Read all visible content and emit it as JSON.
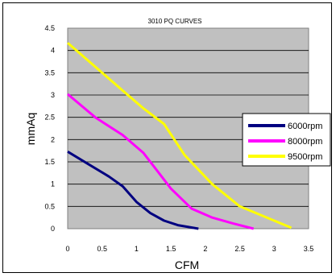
{
  "chart_data": {
    "type": "line",
    "title": "3010 PQ CURVES",
    "xlabel": "CFM",
    "ylabel": "mmAq",
    "xlim": [
      0,
      3.5
    ],
    "ylim": [
      0,
      4.5
    ],
    "x_ticks": [
      "0",
      "0.5",
      "1",
      "1.5",
      "2",
      "2.5",
      "3",
      "3.5"
    ],
    "y_ticks": [
      "0",
      "0.5",
      "1",
      "1.5",
      "2",
      "2.5",
      "3",
      "3.5",
      "4",
      "4.5"
    ],
    "grid": "horizontal",
    "legend_position": "right",
    "series": [
      {
        "name": "6000rpm",
        "color": "#000080",
        "points": [
          [
            0,
            1.73
          ],
          [
            0.3,
            1.45
          ],
          [
            0.6,
            1.17
          ],
          [
            0.8,
            0.95
          ],
          [
            1.0,
            0.6
          ],
          [
            1.2,
            0.35
          ],
          [
            1.4,
            0.18
          ],
          [
            1.6,
            0.08
          ],
          [
            1.9,
            0.0
          ]
        ]
      },
      {
        "name": "8000rpm",
        "color": "#ff00ff",
        "points": [
          [
            0,
            3.02
          ],
          [
            0.4,
            2.5
          ],
          [
            0.8,
            2.1
          ],
          [
            1.1,
            1.7
          ],
          [
            1.3,
            1.3
          ],
          [
            1.5,
            0.9
          ],
          [
            1.8,
            0.45
          ],
          [
            2.1,
            0.25
          ],
          [
            2.4,
            0.12
          ],
          [
            2.7,
            0.0
          ]
        ]
      },
      {
        "name": "9500rpm",
        "color": "#ffff00",
        "points": [
          [
            0,
            4.17
          ],
          [
            0.5,
            3.5
          ],
          [
            0.8,
            3.1
          ],
          [
            1.1,
            2.7
          ],
          [
            1.4,
            2.35
          ],
          [
            1.7,
            1.65
          ],
          [
            2.1,
            1.0
          ],
          [
            2.5,
            0.5
          ],
          [
            3.0,
            0.18
          ],
          [
            3.25,
            0.02
          ]
        ]
      }
    ]
  }
}
